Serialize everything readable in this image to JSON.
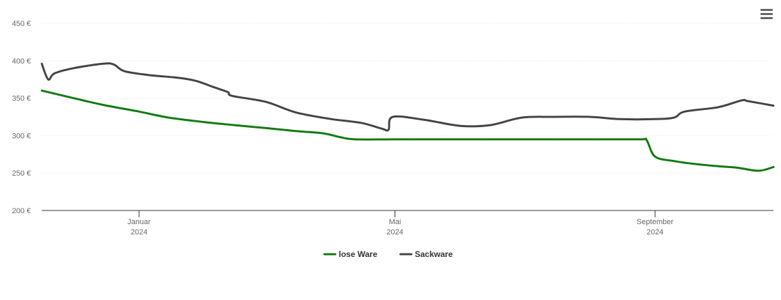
{
  "chart_data": {
    "type": "line",
    "y_tick_labels": [
      "200 €",
      "250 €",
      "300 €",
      "350 €",
      "400 €",
      "450 €"
    ],
    "y_ticks": [
      200,
      250,
      300,
      350,
      400,
      450
    ],
    "ylim": [
      200,
      450
    ],
    "x_tick_labels": [
      {
        "month": "Januar",
        "year": "2024",
        "date": "2024-01-01"
      },
      {
        "month": "Mai",
        "year": "2024",
        "date": "2024-05-01"
      },
      {
        "month": "September",
        "year": "2024",
        "date": "2024-09-01"
      }
    ],
    "xlim": [
      "2023-11-16",
      "2024-10-27"
    ],
    "grid": true,
    "legend_position": "bottom-center",
    "series": [
      {
        "name": "lose Ware",
        "color": "#0f7a0f",
        "points": [
          [
            "2023-11-16",
            360
          ],
          [
            "2023-12-01",
            350
          ],
          [
            "2023-12-15",
            341
          ],
          [
            "2024-01-01",
            332
          ],
          [
            "2024-01-15",
            324
          ],
          [
            "2024-02-01",
            318
          ],
          [
            "2024-02-15",
            314
          ],
          [
            "2024-03-01",
            310
          ],
          [
            "2024-03-15",
            306
          ],
          [
            "2024-03-28",
            303
          ],
          [
            "2024-04-05",
            298
          ],
          [
            "2024-04-12",
            295
          ],
          [
            "2024-05-01",
            295
          ],
          [
            "2024-06-01",
            295
          ],
          [
            "2024-07-01",
            295
          ],
          [
            "2024-08-01",
            295
          ],
          [
            "2024-08-25",
            295
          ],
          [
            "2024-08-28",
            294
          ],
          [
            "2024-09-01",
            272
          ],
          [
            "2024-09-10",
            266
          ],
          [
            "2024-09-20",
            262
          ],
          [
            "2024-10-01",
            259
          ],
          [
            "2024-10-10",
            257
          ],
          [
            "2024-10-20",
            253
          ],
          [
            "2024-10-27",
            258
          ]
        ]
      },
      {
        "name": "Sackware",
        "color": "#434348",
        "points": [
          [
            "2023-11-16",
            396
          ],
          [
            "2023-11-19",
            375
          ],
          [
            "2023-11-22",
            383
          ],
          [
            "2023-12-01",
            390
          ],
          [
            "2023-12-15",
            396
          ],
          [
            "2023-12-20",
            395
          ],
          [
            "2023-12-25",
            386
          ],
          [
            "2024-01-05",
            381
          ],
          [
            "2024-01-20",
            377
          ],
          [
            "2024-01-28",
            373
          ],
          [
            "2024-02-05",
            365
          ],
          [
            "2024-02-12",
            358
          ],
          [
            "2024-02-14",
            353
          ],
          [
            "2024-03-01",
            345
          ],
          [
            "2024-03-15",
            331
          ],
          [
            "2024-04-01",
            322
          ],
          [
            "2024-04-15",
            317
          ],
          [
            "2024-04-25",
            309
          ],
          [
            "2024-04-28",
            308
          ],
          [
            "2024-04-30",
            325
          ],
          [
            "2024-05-15",
            321
          ],
          [
            "2024-06-01",
            313
          ],
          [
            "2024-06-15",
            314
          ],
          [
            "2024-06-30",
            324
          ],
          [
            "2024-07-15",
            325
          ],
          [
            "2024-08-01",
            325
          ],
          [
            "2024-08-15",
            322
          ],
          [
            "2024-09-01",
            322
          ],
          [
            "2024-09-10",
            324
          ],
          [
            "2024-09-15",
            332
          ],
          [
            "2024-10-01",
            338
          ],
          [
            "2024-10-12",
            347
          ],
          [
            "2024-10-15",
            346
          ],
          [
            "2024-10-27",
            340
          ]
        ]
      }
    ]
  },
  "menu": {
    "icon": "hamburger-menu-icon",
    "color": "#666666"
  }
}
